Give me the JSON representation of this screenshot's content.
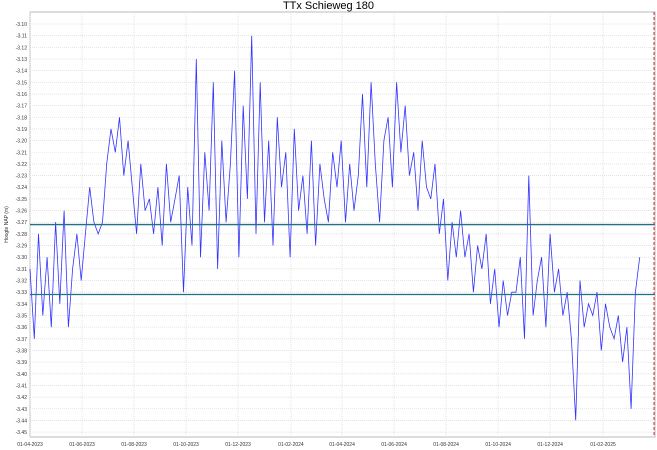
{
  "chart_data": {
    "type": "line",
    "title": "TTx Schieweg 180",
    "ylabel": "Hoogte NAP (m)",
    "xlabel": "",
    "ylim": [
      -3.45,
      -3.1
    ],
    "xlim": [
      "2023-04-01",
      "2025-04-03"
    ],
    "y_ticks": [
      "-3.10",
      "-3.11",
      "-3.12",
      "-3.13",
      "-3.14",
      "-3.15",
      "-3.16",
      "-3.17",
      "-3.18",
      "-3.19",
      "-3.20",
      "-3.21",
      "-3.22",
      "-3.23",
      "-3.24",
      "-3.25",
      "-3.26",
      "-3.27",
      "-3.28",
      "-3.29",
      "-3.30",
      "-3.31",
      "-3.32",
      "-3.33",
      "-3.34",
      "-3.35",
      "-3.36",
      "-3.37",
      "-3.38",
      "-3.39",
      "-3.40",
      "-3.41",
      "-3.42",
      "-3.43",
      "-3.44",
      "-3.45"
    ],
    "x_ticks": [
      {
        "label": "01-04-2023",
        "date": "2023-04-01"
      },
      {
        "label": "01-06-2023",
        "date": "2023-06-01"
      },
      {
        "label": "01-08-2023",
        "date": "2023-08-01"
      },
      {
        "label": "01-10-2023",
        "date": "2023-10-01"
      },
      {
        "label": "01-12-2023",
        "date": "2023-12-01"
      },
      {
        "label": "01-02-2024",
        "date": "2024-02-01"
      },
      {
        "label": "01-04-2024",
        "date": "2024-04-01"
      },
      {
        "label": "01-06-2024",
        "date": "2024-06-01"
      },
      {
        "label": "01-08-2024",
        "date": "2024-08-01"
      },
      {
        "label": "01-10-2024",
        "date": "2024-10-01"
      },
      {
        "label": "01-12-2024",
        "date": "2024-12-01"
      },
      {
        "label": "01-02-2025",
        "date": "2025-02-01"
      }
    ],
    "grid": true,
    "series": [
      {
        "color": "#0000ff",
        "start": "2023-04-01",
        "step_days": 5,
        "values": [
          -3.31,
          -3.37,
          -3.28,
          -3.35,
          -3.3,
          -3.36,
          -3.27,
          -3.34,
          -3.26,
          -3.36,
          -3.31,
          -3.28,
          -3.32,
          -3.28,
          -3.24,
          -3.27,
          -3.28,
          -3.27,
          -3.22,
          -3.19,
          -3.21,
          -3.18,
          -3.23,
          -3.2,
          -3.24,
          -3.28,
          -3.22,
          -3.26,
          -3.25,
          -3.28,
          -3.24,
          -3.29,
          -3.22,
          -3.27,
          -3.25,
          -3.23,
          -3.33,
          -3.24,
          -3.29,
          -3.13,
          -3.3,
          -3.21,
          -3.26,
          -3.15,
          -3.31,
          -3.2,
          -3.27,
          -3.22,
          -3.14,
          -3.3,
          -3.17,
          -3.25,
          -3.11,
          -3.28,
          -3.15,
          -3.27,
          -3.2,
          -3.29,
          -3.18,
          -3.24,
          -3.21,
          -3.3,
          -3.19,
          -3.26,
          -3.23,
          -3.28,
          -3.2,
          -3.29,
          -3.22,
          -3.25,
          -3.27,
          -3.21,
          -3.24,
          -3.2,
          -3.27,
          -3.22,
          -3.26,
          -3.23,
          -3.16,
          -3.24,
          -3.15,
          -3.22,
          -3.27,
          -3.2,
          -3.18,
          -3.24,
          -3.15,
          -3.21,
          -3.17,
          -3.23,
          -3.21,
          -3.26,
          -3.2,
          -3.24,
          -3.25,
          -3.22,
          -3.28,
          -3.25,
          -3.32,
          -3.27,
          -3.3,
          -3.26,
          -3.3,
          -3.28,
          -3.33,
          -3.29,
          -3.31,
          -3.28,
          -3.34,
          -3.31,
          -3.36,
          -3.32,
          -3.35,
          -3.33,
          -3.33,
          -3.3,
          -3.37,
          -3.23,
          -3.35,
          -3.32,
          -3.3,
          -3.36,
          -3.28,
          -3.33,
          -3.31,
          -3.35,
          -3.33,
          -3.37,
          -3.44,
          -3.32,
          -3.36,
          -3.34,
          -3.35,
          -3.33,
          -3.38,
          -3.34,
          -3.36,
          -3.37,
          -3.35,
          -3.39,
          -3.36,
          -3.43,
          -3.33,
          -3.3
        ]
      }
    ],
    "reference_lines": [
      {
        "y": -3.272,
        "color": "#1f6f8b"
      },
      {
        "y": -3.332,
        "color": "#1f6f8b"
      }
    ],
    "vertical_marker": {
      "date": "2025-04-03",
      "color": "#e03030",
      "style": "dashed"
    }
  }
}
